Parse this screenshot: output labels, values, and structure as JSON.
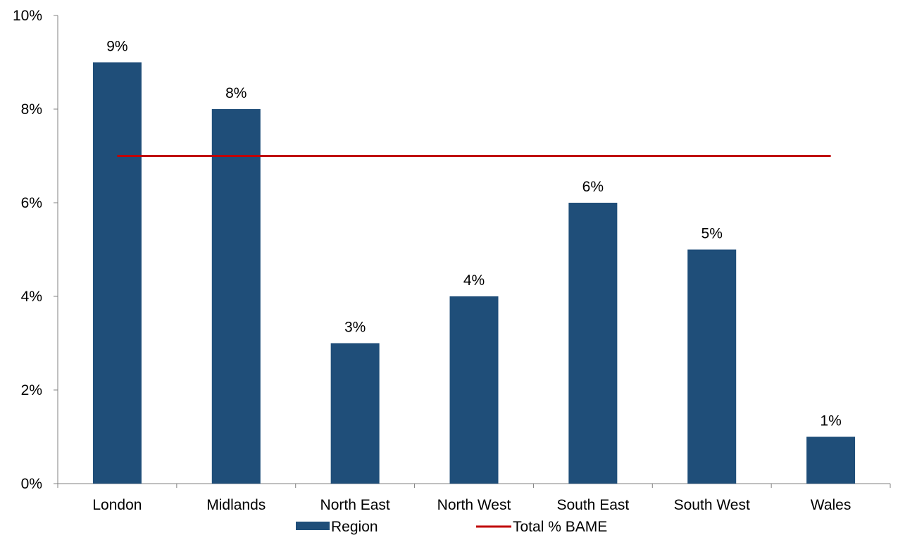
{
  "chart_data": {
    "type": "bar",
    "title": "",
    "xlabel": "",
    "ylabel": "",
    "categories": [
      "London",
      "Midlands",
      "North East",
      "North West",
      "South East",
      "South West",
      "Wales"
    ],
    "series": [
      {
        "name": "Region",
        "type": "bar",
        "color": "#1f4e79",
        "values": [
          9,
          8,
          3,
          4,
          6,
          5,
          1
        ],
        "data_labels": [
          "9%",
          "8%",
          "3%",
          "4%",
          "6%",
          "5%",
          "1%"
        ]
      },
      {
        "name": "Total % BAME",
        "type": "line",
        "color": "#c00000",
        "values": [
          7,
          7,
          7,
          7,
          7,
          7,
          7
        ]
      }
    ],
    "ylim": [
      0,
      10
    ],
    "yticks": [
      0,
      2,
      4,
      6,
      8,
      10
    ],
    "ytick_labels": [
      "0%",
      "2%",
      "4%",
      "6%",
      "8%",
      "10%"
    ],
    "grid": false,
    "legend_position": "bottom"
  }
}
